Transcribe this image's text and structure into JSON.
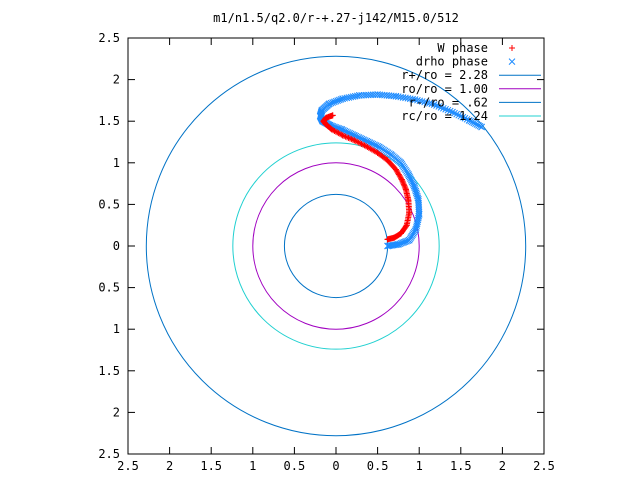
{
  "chart_data": {
    "type": "scatter",
    "title": "m1/n1.5/q2.0/r-+.27-j142/M15.0/512",
    "xlabel": "",
    "ylabel": "",
    "xlim": [
      -2.5,
      2.5
    ],
    "ylim": [
      -2.5,
      2.5
    ],
    "x_ticks": [
      -2.5,
      -2,
      -1.5,
      -1,
      -0.5,
      0,
      0.5,
      1,
      1.5,
      2,
      2.5
    ],
    "y_ticks": [
      -2.5,
      -2,
      -1.5,
      -1,
      -0.5,
      0,
      0.5,
      1,
      1.5,
      2,
      2.5
    ],
    "x_tick_labels": [
      "2.5",
      "2",
      "1.5",
      "1",
      "0.5",
      "0",
      "0.5",
      "1",
      "1.5",
      "2",
      "2.5"
    ],
    "y_tick_labels": [
      "2.5",
      "2",
      "1.5",
      "1",
      "0.5",
      "0",
      "0.5",
      "1",
      "1.5",
      "2",
      "2.5"
    ],
    "grid": false,
    "legend_position": "top-right",
    "series": [
      {
        "name": "W phase",
        "kind": "points",
        "marker": "plus",
        "color": "#ff0000",
        "x": [
          0.62,
          0.7,
          0.78,
          0.85,
          0.88,
          0.87,
          0.84,
          0.79,
          0.72,
          0.62,
          0.5,
          0.36,
          0.22,
          0.08,
          -0.05,
          -0.12,
          -0.15,
          -0.12,
          -0.04
        ],
        "y": [
          0.08,
          0.1,
          0.15,
          0.25,
          0.4,
          0.55,
          0.68,
          0.8,
          0.92,
          1.03,
          1.12,
          1.2,
          1.27,
          1.33,
          1.4,
          1.46,
          1.5,
          1.54,
          1.57
        ]
      },
      {
        "name": "drho phase",
        "kind": "points",
        "marker": "cross",
        "color": "#1e8cff",
        "x": [
          0.62,
          0.75,
          0.88,
          0.96,
          1.0,
          0.99,
          0.94,
          0.87,
          0.78,
          0.66,
          0.52,
          0.37,
          0.22,
          0.07,
          -0.07,
          -0.16,
          -0.19,
          -0.17,
          -0.08,
          0.08,
          0.28,
          0.5,
          0.72,
          0.95,
          1.18,
          1.4,
          1.6,
          1.75
        ],
        "y": [
          0.0,
          0.02,
          0.07,
          0.2,
          0.38,
          0.56,
          0.72,
          0.86,
          1.0,
          1.1,
          1.19,
          1.26,
          1.33,
          1.4,
          1.45,
          1.5,
          1.56,
          1.63,
          1.71,
          1.77,
          1.81,
          1.82,
          1.8,
          1.76,
          1.7,
          1.61,
          1.51,
          1.43
        ]
      },
      {
        "name": "r+/ro = 2.28",
        "kind": "circle",
        "radius": 2.28,
        "color": "#0072c6"
      },
      {
        "name": "ro/ro = 1.00",
        "kind": "circle",
        "radius": 1.0,
        "color": "#a000c0"
      },
      {
        "name": "r-/ro = .62",
        "kind": "circle",
        "radius": 0.62,
        "color": "#0072c6"
      },
      {
        "name": "rc/ro = 1.24",
        "kind": "circle",
        "radius": 1.24,
        "color": "#20d0d0"
      }
    ]
  }
}
